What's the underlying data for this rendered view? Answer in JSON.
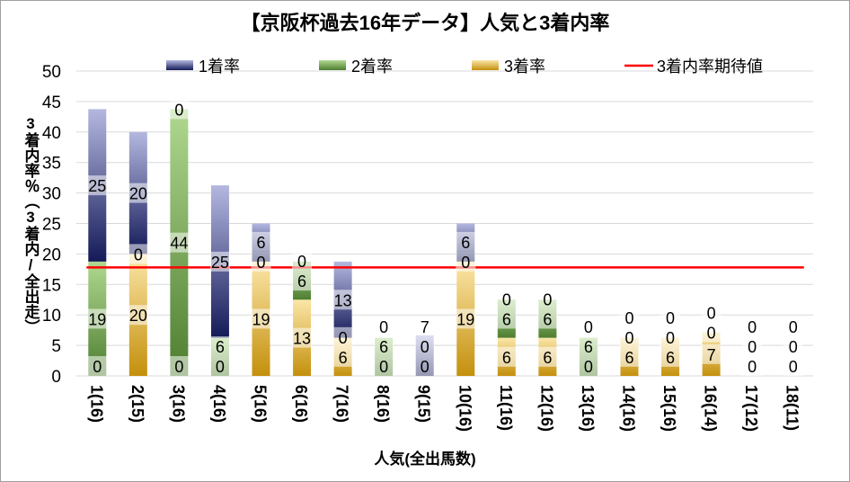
{
  "chart_data": {
    "type": "bar",
    "stacked": true,
    "title": "【京阪杯過去16年データ】人気と3着内率",
    "xlabel": "人気(全出馬数)",
    "ylabel": "3着内率％（3着内/全出走）",
    "ylim": [
      0,
      50
    ],
    "yticks": [
      0,
      5,
      10,
      15,
      20,
      25,
      30,
      35,
      40,
      45,
      50
    ],
    "grid": true,
    "legend_position": "top",
    "categories": [
      "1(16)",
      "2(15)",
      "3(16)",
      "4(16)",
      "5(16)",
      "6(16)",
      "7(16)",
      "8(16)",
      "9(15)",
      "10(16)",
      "11(16)",
      "12(16)",
      "13(16)",
      "14(16)",
      "15(16)",
      "16(14)",
      "17(12)",
      "18(11)"
    ],
    "series": [
      {
        "name": "1着率",
        "color": "#3a4190",
        "values": [
          25,
          20,
          0,
          25,
          6.25,
          0,
          12.5,
          0,
          6.67,
          6.25,
          0,
          0,
          0,
          0,
          0,
          0,
          0,
          0
        ]
      },
      {
        "name": "2着率",
        "color": "#5a8a3a",
        "values": [
          18.75,
          0,
          43.75,
          6.25,
          0,
          6.25,
          0,
          6.25,
          0,
          0,
          6.25,
          6.25,
          6.25,
          0,
          0,
          0,
          0,
          0
        ]
      },
      {
        "name": "3着率",
        "color": "#d4a020",
        "values": [
          0,
          20,
          0,
          0,
          18.75,
          12.5,
          6.25,
          0,
          0,
          18.75,
          6.25,
          6.25,
          0,
          6.25,
          6.25,
          7.14,
          0,
          0
        ]
      }
    ],
    "reference_line": {
      "name": "3着内率期待値",
      "value": 17.8,
      "color": "#ff0000"
    }
  }
}
